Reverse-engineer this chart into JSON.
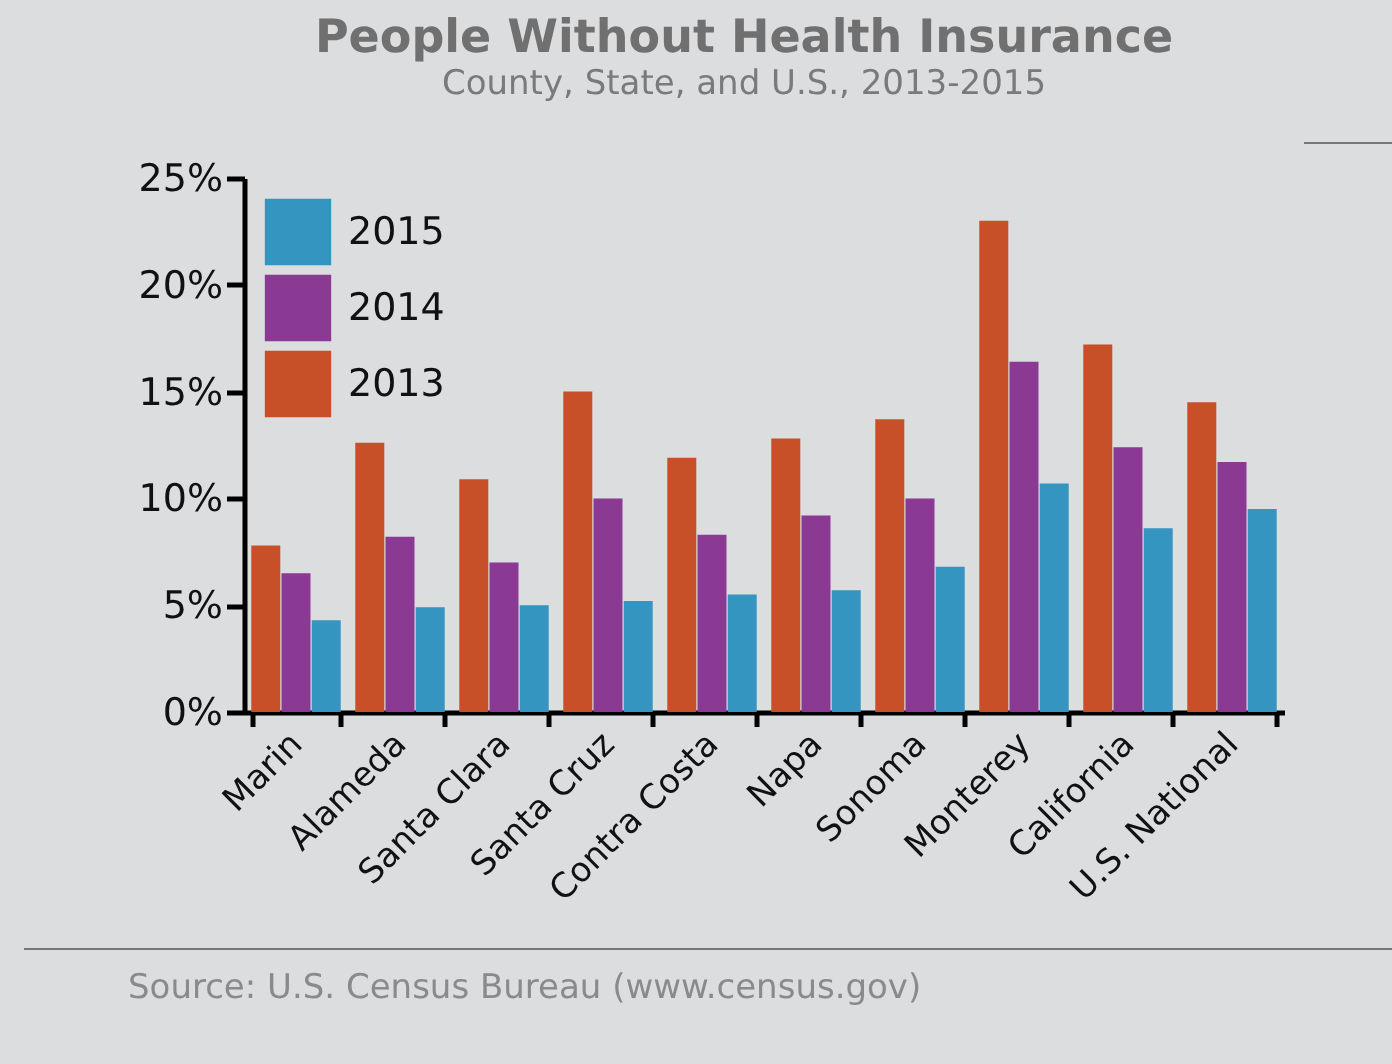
{
  "chart_data": {
    "type": "bar",
    "title": "People Without Health Insurance",
    "subtitle": "County, State, and U.S., 2013-2015",
    "categories": [
      "Marin",
      "Alameda",
      "Santa Clara",
      "Santa Cruz",
      "Contra Costa",
      "Napa",
      "Sonoma",
      "Monterey",
      "California",
      "U.S. National"
    ],
    "series": [
      {
        "name": "2013",
        "color": "#c85028",
        "values": [
          7.8,
          12.6,
          10.9,
          15.0,
          11.9,
          12.8,
          13.7,
          23.0,
          17.2,
          14.5
        ]
      },
      {
        "name": "2014",
        "color": "#8a3a93",
        "values": [
          6.5,
          8.2,
          7.0,
          10.0,
          8.3,
          9.2,
          10.0,
          16.4,
          12.4,
          11.7
        ]
      },
      {
        "name": "2015",
        "color": "#3595c1",
        "values": [
          4.3,
          4.9,
          5.0,
          5.2,
          5.5,
          5.7,
          6.8,
          10.7,
          8.6,
          9.5
        ]
      }
    ],
    "ylim": [
      0,
      25
    ],
    "yticks": [
      {
        "value": 0,
        "label": "0%"
      },
      {
        "value": 5,
        "label": "5%"
      },
      {
        "value": 10,
        "label": "10%"
      },
      {
        "value": 15,
        "label": "15%"
      },
      {
        "value": 20,
        "label": "20%"
      },
      {
        "value": 25,
        "label": "25%"
      }
    ],
    "legend": "top left",
    "annotations": [
      "Source: U.S. Census Bureau (www.census.gov)"
    ]
  }
}
